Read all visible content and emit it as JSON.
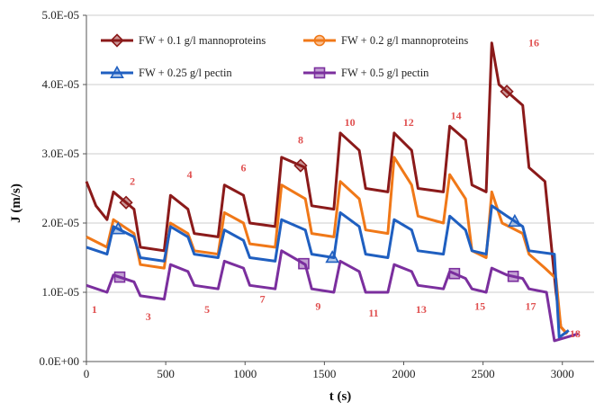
{
  "chart_data": {
    "type": "line",
    "title": "",
    "xlabel": "t (s)",
    "ylabel": "J (m/s)",
    "xlim": [
      0,
      3200
    ],
    "ylim": [
      0,
      5e-05
    ],
    "xticks": [
      0,
      500,
      1000,
      1500,
      2000,
      2500,
      3000
    ],
    "xtick_labels": [
      "0",
      "500",
      "1000",
      "1500",
      "2000",
      "2500",
      "3000"
    ],
    "yticks": [
      0,
      1e-05,
      2e-05,
      3e-05,
      4e-05,
      5e-05
    ],
    "ytick_labels": [
      "0.0E+00",
      "1.0E-05",
      "2.0E-05",
      "3.0E-05",
      "4.0E-05",
      "5.0E-05"
    ],
    "grid": "horizontal",
    "legend_position": "top",
    "series": [
      {
        "name": "FW + 0.1 g/l mannoproteins",
        "color": "#8b1a1a",
        "marker": "diamond",
        "marker_x": [
          250,
          1350,
          2650
        ],
        "points": [
          [
            0,
            2.6e-05
          ],
          [
            60,
            2.25e-05
          ],
          [
            130,
            2.05e-05
          ],
          [
            170,
            2.45e-05
          ],
          [
            300,
            2.2e-05
          ],
          [
            340,
            1.65e-05
          ],
          [
            490,
            1.6e-05
          ],
          [
            530,
            2.4e-05
          ],
          [
            640,
            2.2e-05
          ],
          [
            680,
            1.85e-05
          ],
          [
            830,
            1.8e-05
          ],
          [
            870,
            2.55e-05
          ],
          [
            990,
            2.4e-05
          ],
          [
            1030,
            2e-05
          ],
          [
            1190,
            1.95e-05
          ],
          [
            1230,
            2.95e-05
          ],
          [
            1380,
            2.8e-05
          ],
          [
            1420,
            2.25e-05
          ],
          [
            1560,
            2.2e-05
          ],
          [
            1600,
            3.3e-05
          ],
          [
            1720,
            3.05e-05
          ],
          [
            1760,
            2.5e-05
          ],
          [
            1900,
            2.45e-05
          ],
          [
            1940,
            3.3e-05
          ],
          [
            2050,
            3.05e-05
          ],
          [
            2090,
            2.5e-05
          ],
          [
            2250,
            2.45e-05
          ],
          [
            2290,
            3.4e-05
          ],
          [
            2390,
            3.2e-05
          ],
          [
            2430,
            2.55e-05
          ],
          [
            2520,
            2.45e-05
          ],
          [
            2555,
            4.6e-05
          ],
          [
            2600,
            4e-05
          ],
          [
            2750,
            3.7e-05
          ],
          [
            2790,
            2.8e-05
          ],
          [
            2890,
            2.6e-05
          ],
          [
            2960,
            1e-05
          ],
          [
            2990,
            5e-06
          ],
          [
            3030,
            4e-06
          ]
        ]
      },
      {
        "name": "FW + 0.2 g/l mannoproteins",
        "color": "#f07818",
        "marker": "circle",
        "marker_x": [],
        "points": [
          [
            0,
            1.8e-05
          ],
          [
            130,
            1.65e-05
          ],
          [
            170,
            2.05e-05
          ],
          [
            300,
            1.85e-05
          ],
          [
            340,
            1.4e-05
          ],
          [
            490,
            1.35e-05
          ],
          [
            530,
            2e-05
          ],
          [
            640,
            1.85e-05
          ],
          [
            680,
            1.6e-05
          ],
          [
            830,
            1.55e-05
          ],
          [
            870,
            2.15e-05
          ],
          [
            990,
            2e-05
          ],
          [
            1030,
            1.7e-05
          ],
          [
            1190,
            1.65e-05
          ],
          [
            1230,
            2.55e-05
          ],
          [
            1380,
            2.35e-05
          ],
          [
            1420,
            1.85e-05
          ],
          [
            1560,
            1.8e-05
          ],
          [
            1600,
            2.6e-05
          ],
          [
            1720,
            2.35e-05
          ],
          [
            1760,
            1.9e-05
          ],
          [
            1900,
            1.85e-05
          ],
          [
            1940,
            2.95e-05
          ],
          [
            2050,
            2.55e-05
          ],
          [
            2090,
            2.1e-05
          ],
          [
            2250,
            2e-05
          ],
          [
            2290,
            2.7e-05
          ],
          [
            2390,
            2.35e-05
          ],
          [
            2430,
            1.6e-05
          ],
          [
            2520,
            1.5e-05
          ],
          [
            2555,
            2.45e-05
          ],
          [
            2620,
            2e-05
          ],
          [
            2750,
            1.85e-05
          ],
          [
            2790,
            1.55e-05
          ],
          [
            2890,
            1.35e-05
          ],
          [
            2960,
            1.2e-05
          ],
          [
            2990,
            5e-06
          ],
          [
            3030,
            4e-06
          ]
        ]
      },
      {
        "name": "FW + 0.25 g/l pectin",
        "color": "#1f5fc0",
        "marker": "triangle",
        "marker_x": [
          200,
          1550,
          2700
        ],
        "points": [
          [
            0,
            1.65e-05
          ],
          [
            130,
            1.55e-05
          ],
          [
            170,
            1.95e-05
          ],
          [
            300,
            1.8e-05
          ],
          [
            340,
            1.5e-05
          ],
          [
            490,
            1.45e-05
          ],
          [
            530,
            1.95e-05
          ],
          [
            640,
            1.8e-05
          ],
          [
            680,
            1.55e-05
          ],
          [
            830,
            1.5e-05
          ],
          [
            870,
            1.9e-05
          ],
          [
            990,
            1.75e-05
          ],
          [
            1030,
            1.5e-05
          ],
          [
            1190,
            1.45e-05
          ],
          [
            1230,
            2.05e-05
          ],
          [
            1380,
            1.9e-05
          ],
          [
            1420,
            1.55e-05
          ],
          [
            1560,
            1.5e-05
          ],
          [
            1600,
            2.15e-05
          ],
          [
            1720,
            1.95e-05
          ],
          [
            1760,
            1.55e-05
          ],
          [
            1900,
            1.5e-05
          ],
          [
            1940,
            2.05e-05
          ],
          [
            2050,
            1.9e-05
          ],
          [
            2090,
            1.6e-05
          ],
          [
            2250,
            1.55e-05
          ],
          [
            2290,
            2.1e-05
          ],
          [
            2390,
            1.9e-05
          ],
          [
            2430,
            1.6e-05
          ],
          [
            2520,
            1.55e-05
          ],
          [
            2555,
            2.25e-05
          ],
          [
            2650,
            2.1e-05
          ],
          [
            2750,
            1.95e-05
          ],
          [
            2790,
            1.6e-05
          ],
          [
            2950,
            1.55e-05
          ],
          [
            2980,
            3.5e-06
          ],
          [
            3040,
            4.5e-06
          ]
        ]
      },
      {
        "name": "FW + 0.5 g/l pectin",
        "color": "#7b2f9e",
        "marker": "square",
        "marker_x": [
          210,
          1370,
          2320,
          2690
        ],
        "points": [
          [
            0,
            1.1e-05
          ],
          [
            130,
            1e-05
          ],
          [
            170,
            1.25e-05
          ],
          [
            300,
            1.15e-05
          ],
          [
            340,
            9.5e-06
          ],
          [
            490,
            9e-06
          ],
          [
            530,
            1.4e-05
          ],
          [
            640,
            1.3e-05
          ],
          [
            680,
            1.1e-05
          ],
          [
            830,
            1.05e-05
          ],
          [
            870,
            1.45e-05
          ],
          [
            990,
            1.35e-05
          ],
          [
            1030,
            1.1e-05
          ],
          [
            1190,
            1.05e-05
          ],
          [
            1230,
            1.6e-05
          ],
          [
            1380,
            1.4e-05
          ],
          [
            1420,
            1.05e-05
          ],
          [
            1560,
            1e-05
          ],
          [
            1600,
            1.45e-05
          ],
          [
            1720,
            1.3e-05
          ],
          [
            1760,
            1e-05
          ],
          [
            1900,
            1e-05
          ],
          [
            1940,
            1.4e-05
          ],
          [
            2050,
            1.3e-05
          ],
          [
            2090,
            1.1e-05
          ],
          [
            2250,
            1.05e-05
          ],
          [
            2290,
            1.3e-05
          ],
          [
            2390,
            1.2e-05
          ],
          [
            2430,
            1.05e-05
          ],
          [
            2520,
            1e-05
          ],
          [
            2555,
            1.35e-05
          ],
          [
            2650,
            1.25e-05
          ],
          [
            2750,
            1.2e-05
          ],
          [
            2790,
            1.05e-05
          ],
          [
            2900,
            1e-05
          ],
          [
            2950,
            3e-06
          ],
          [
            3100,
            4e-06
          ]
        ]
      }
    ],
    "annotations": [
      {
        "text": "1",
        "x": 50,
        "y": 7e-06
      },
      {
        "text": "2",
        "x": 290,
        "y": 2.55e-05
      },
      {
        "text": "3",
        "x": 390,
        "y": 6e-06
      },
      {
        "text": "4",
        "x": 650,
        "y": 2.65e-05
      },
      {
        "text": "5",
        "x": 760,
        "y": 7e-06
      },
      {
        "text": "6",
        "x": 990,
        "y": 2.75e-05
      },
      {
        "text": "7",
        "x": 1110,
        "y": 8.5e-06
      },
      {
        "text": "8",
        "x": 1350,
        "y": 3.15e-05
      },
      {
        "text": "9",
        "x": 1460,
        "y": 7.5e-06
      },
      {
        "text": "10",
        "x": 1660,
        "y": 3.4e-05
      },
      {
        "text": "11",
        "x": 1810,
        "y": 6.5e-06
      },
      {
        "text": "12",
        "x": 2030,
        "y": 3.4e-05
      },
      {
        "text": "13",
        "x": 2110,
        "y": 7e-06
      },
      {
        "text": "14",
        "x": 2330,
        "y": 3.5e-05
      },
      {
        "text": "15",
        "x": 2480,
        "y": 7.5e-06
      },
      {
        "text": "16",
        "x": 2820,
        "y": 4.55e-05
      },
      {
        "text": "17",
        "x": 2800,
        "y": 7.5e-06
      },
      {
        "text": "18",
        "x": 3080,
        "y": 3.5e-06
      }
    ]
  }
}
